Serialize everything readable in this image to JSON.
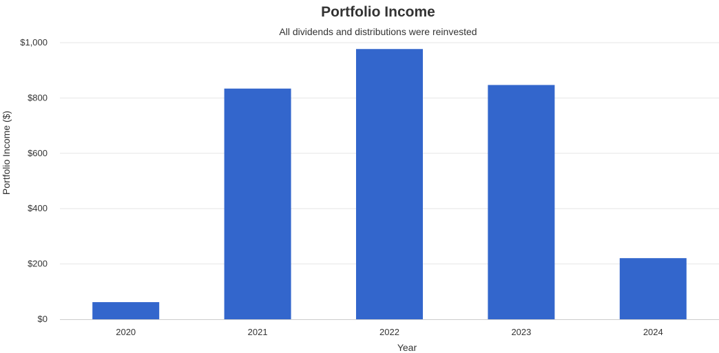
{
  "chart_data": {
    "type": "bar",
    "title": "Portfolio Income",
    "subtitle": "All dividends and distributions were reinvested",
    "xlabel": "Year",
    "ylabel": "Portfolio Income ($)",
    "categories": [
      "2020",
      "2021",
      "2022",
      "2023",
      "2024"
    ],
    "values": [
      62,
      834,
      977,
      847,
      221
    ],
    "ylim": [
      0,
      1000
    ],
    "yticks": [
      0,
      200,
      400,
      600,
      800,
      1000
    ],
    "ytick_labels": [
      "$0",
      "$200",
      "$400",
      "$600",
      "$800",
      "$1,000"
    ],
    "grid": true,
    "legend": "none",
    "bar_color": "#3366cc",
    "grid_color": "#e6e6e6"
  }
}
